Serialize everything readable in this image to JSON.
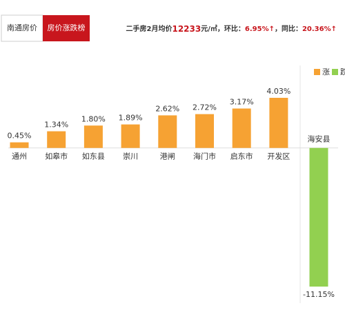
{
  "tabs": [
    "南通房价",
    "房价涨跌榜"
  ],
  "header": [
    "二手房2月均价",
    "12233",
    "元/㎡，环比：",
    "6.95%↑",
    "，同比：",
    "20.36%↑"
  ],
  "chart_data": {
    "type": "bar",
    "categories": [
      "通州",
      "如皋市",
      "如东县",
      "崇川",
      "港闸",
      "海门市",
      "启东市",
      "开发区",
      "海安县"
    ],
    "values": [
      0.45,
      1.34,
      1.8,
      1.89,
      2.62,
      2.72,
      3.17,
      4.03,
      -11.15
    ],
    "value_labels": [
      "0.45%",
      "1.34%",
      "1.80%",
      "1.89%",
      "2.62%",
      "2.72%",
      "3.17%",
      "4.03%",
      "-11.15%"
    ],
    "legend": [
      {
        "name": "涨",
        "color": "#f6a233"
      },
      {
        "name": "跌",
        "color": "#92d050"
      }
    ]
  }
}
